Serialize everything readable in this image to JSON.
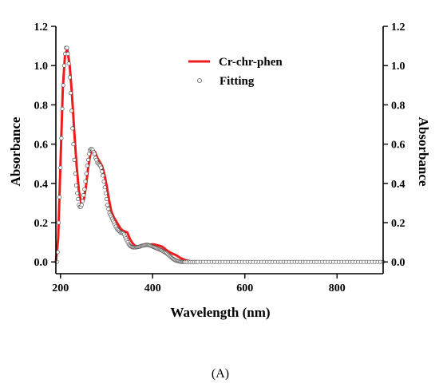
{
  "chart_data": {
    "type": "line",
    "xlabel": "Wavelength (nm)",
    "ylabel_left": "Absorbance",
    "ylabel_right": "Absorbance",
    "xlim": [
      190,
      900
    ],
    "ylim": [
      -0.06,
      1.2
    ],
    "xticks": [
      200,
      400,
      600,
      800
    ],
    "yticks": [
      0.0,
      0.2,
      0.4,
      0.6,
      0.8,
      1.0,
      1.2
    ],
    "ytick_labels": [
      "0.0",
      "0.2",
      "0.4",
      "0.6",
      "0.8",
      "1.0",
      "1.2"
    ],
    "legend_position": "top-center",
    "grid": false,
    "panel_label": "(A)",
    "colors": {
      "line": "#ee1c1c",
      "marker_stroke": "#555555",
      "axis": "#000000"
    },
    "series": [
      {
        "name": "Cr-chr-phen",
        "style": "line",
        "points": [
          [
            190,
            0.0
          ],
          [
            195,
            0.12
          ],
          [
            200,
            0.5
          ],
          [
            205,
            0.88
          ],
          [
            210,
            1.06
          ],
          [
            215,
            1.08
          ],
          [
            220,
            1.0
          ],
          [
            225,
            0.85
          ],
          [
            230,
            0.66
          ],
          [
            235,
            0.49
          ],
          [
            240,
            0.36
          ],
          [
            245,
            0.3
          ],
          [
            250,
            0.31
          ],
          [
            255,
            0.38
          ],
          [
            260,
            0.48
          ],
          [
            265,
            0.55
          ],
          [
            270,
            0.57
          ],
          [
            275,
            0.56
          ],
          [
            280,
            0.53
          ],
          [
            285,
            0.51
          ],
          [
            290,
            0.49
          ],
          [
            295,
            0.45
          ],
          [
            300,
            0.39
          ],
          [
            305,
            0.32
          ],
          [
            310,
            0.26
          ],
          [
            315,
            0.23
          ],
          [
            320,
            0.21
          ],
          [
            325,
            0.19
          ],
          [
            330,
            0.17
          ],
          [
            335,
            0.16
          ],
          [
            340,
            0.155
          ],
          [
            345,
            0.15
          ],
          [
            350,
            0.12
          ],
          [
            355,
            0.1
          ],
          [
            360,
            0.085
          ],
          [
            365,
            0.08
          ],
          [
            370,
            0.078
          ],
          [
            375,
            0.078
          ],
          [
            380,
            0.08
          ],
          [
            385,
            0.082
          ],
          [
            390,
            0.085
          ],
          [
            395,
            0.088
          ],
          [
            400,
            0.09
          ],
          [
            405,
            0.088
          ],
          [
            410,
            0.085
          ],
          [
            415,
            0.082
          ],
          [
            420,
            0.078
          ],
          [
            425,
            0.07
          ],
          [
            430,
            0.06
          ],
          [
            435,
            0.052
          ],
          [
            440,
            0.045
          ],
          [
            445,
            0.04
          ],
          [
            450,
            0.035
          ],
          [
            455,
            0.028
          ],
          [
            460,
            0.02
          ],
          [
            465,
            0.015
          ],
          [
            470,
            0.01
          ],
          [
            475,
            0.007
          ],
          [
            480,
            0.004
          ],
          [
            485,
            0.002
          ],
          [
            490,
            0.001
          ],
          [
            500,
            0.0
          ],
          [
            550,
            0.0
          ],
          [
            600,
            0.0
          ],
          [
            650,
            0.0
          ],
          [
            700,
            0.0
          ],
          [
            750,
            0.0
          ],
          [
            800,
            0.0
          ],
          [
            850,
            0.0
          ],
          [
            900,
            0.0
          ]
        ]
      },
      {
        "name": "Fitting",
        "style": "markers",
        "points": [
          [
            192,
            0.0
          ],
          [
            194,
            0.05
          ],
          [
            196,
            0.2
          ],
          [
            198,
            0.33
          ],
          [
            200,
            0.48
          ],
          [
            202,
            0.63
          ],
          [
            204,
            0.78
          ],
          [
            206,
            0.9
          ],
          [
            208,
            1.0
          ],
          [
            210,
            1.06
          ],
          [
            212,
            1.09
          ],
          [
            214,
            1.09
          ],
          [
            216,
            1.06
          ],
          [
            218,
            1.01
          ],
          [
            220,
            0.94
          ],
          [
            222,
            0.86
          ],
          [
            224,
            0.77
          ],
          [
            226,
            0.68
          ],
          [
            228,
            0.6
          ],
          [
            230,
            0.52
          ],
          [
            232,
            0.45
          ],
          [
            234,
            0.39
          ],
          [
            236,
            0.35
          ],
          [
            238,
            0.32
          ],
          [
            240,
            0.29
          ],
          [
            242,
            0.28
          ],
          [
            244,
            0.28
          ],
          [
            246,
            0.29
          ],
          [
            248,
            0.31
          ],
          [
            250,
            0.34
          ],
          [
            252,
            0.37
          ],
          [
            254,
            0.41
          ],
          [
            256,
            0.45
          ],
          [
            258,
            0.49
          ],
          [
            260,
            0.52
          ],
          [
            262,
            0.55
          ],
          [
            264,
            0.57
          ],
          [
            266,
            0.575
          ],
          [
            268,
            0.575
          ],
          [
            270,
            0.57
          ],
          [
            272,
            0.56
          ],
          [
            274,
            0.55
          ],
          [
            276,
            0.53
          ],
          [
            278,
            0.52
          ],
          [
            280,
            0.505
          ],
          [
            282,
            0.5
          ],
          [
            284,
            0.495
          ],
          [
            286,
            0.49
          ],
          [
            288,
            0.48
          ],
          [
            290,
            0.46
          ],
          [
            292,
            0.44
          ],
          [
            294,
            0.41
          ],
          [
            296,
            0.38
          ],
          [
            298,
            0.35
          ],
          [
            300,
            0.32
          ],
          [
            302,
            0.29
          ],
          [
            304,
            0.27
          ],
          [
            306,
            0.25
          ],
          [
            308,
            0.24
          ],
          [
            310,
            0.23
          ],
          [
            312,
            0.22
          ],
          [
            314,
            0.21
          ],
          [
            316,
            0.2
          ],
          [
            318,
            0.19
          ],
          [
            320,
            0.18
          ],
          [
            322,
            0.17
          ],
          [
            324,
            0.165
          ],
          [
            326,
            0.16
          ],
          [
            328,
            0.155
          ],
          [
            330,
            0.15
          ],
          [
            332,
            0.15
          ],
          [
            334,
            0.148
          ],
          [
            336,
            0.146
          ],
          [
            338,
            0.14
          ],
          [
            340,
            0.13
          ],
          [
            342,
            0.12
          ],
          [
            344,
            0.11
          ],
          [
            346,
            0.1
          ],
          [
            348,
            0.09
          ],
          [
            350,
            0.085
          ],
          [
            352,
            0.08
          ],
          [
            354,
            0.077
          ],
          [
            356,
            0.075
          ],
          [
            358,
            0.074
          ],
          [
            360,
            0.074
          ],
          [
            362,
            0.074
          ],
          [
            364,
            0.075
          ],
          [
            366,
            0.075
          ],
          [
            368,
            0.076
          ],
          [
            370,
            0.077
          ],
          [
            372,
            0.078
          ],
          [
            374,
            0.08
          ],
          [
            376,
            0.082
          ],
          [
            378,
            0.083
          ],
          [
            380,
            0.084
          ],
          [
            382,
            0.085
          ],
          [
            384,
            0.086
          ],
          [
            386,
            0.087
          ],
          [
            388,
            0.087
          ],
          [
            390,
            0.086
          ],
          [
            392,
            0.085
          ],
          [
            394,
            0.084
          ],
          [
            396,
            0.082
          ],
          [
            398,
            0.08
          ],
          [
            400,
            0.078
          ],
          [
            402,
            0.076
          ],
          [
            404,
            0.074
          ],
          [
            406,
            0.072
          ],
          [
            408,
            0.07
          ],
          [
            410,
            0.068
          ],
          [
            412,
            0.066
          ],
          [
            414,
            0.064
          ],
          [
            416,
            0.062
          ],
          [
            418,
            0.06
          ],
          [
            420,
            0.058
          ],
          [
            422,
            0.055
          ],
          [
            424,
            0.052
          ],
          [
            426,
            0.05
          ],
          [
            428,
            0.047
          ],
          [
            430,
            0.044
          ],
          [
            432,
            0.04
          ],
          [
            434,
            0.036
          ],
          [
            436,
            0.032
          ],
          [
            438,
            0.028
          ],
          [
            440,
            0.024
          ],
          [
            442,
            0.02
          ],
          [
            444,
            0.016
          ],
          [
            446,
            0.013
          ],
          [
            448,
            0.01
          ],
          [
            450,
            0.008
          ],
          [
            452,
            0.006
          ],
          [
            454,
            0.004
          ],
          [
            456,
            0.003
          ],
          [
            458,
            0.002
          ],
          [
            460,
            0.001
          ],
          [
            462,
            0.0
          ],
          [
            464,
            0.0
          ],
          [
            466,
            0.0
          ],
          [
            468,
            0.0
          ],
          [
            470,
            0.0
          ],
          [
            474,
            0.0
          ],
          [
            478,
            0.0
          ],
          [
            482,
            0.0
          ],
          [
            486,
            0.0
          ],
          [
            490,
            0.0
          ],
          [
            494,
            0.0
          ],
          [
            498,
            0.0
          ],
          [
            504,
            0.0
          ],
          [
            510,
            0.0
          ],
          [
            516,
            0.0
          ],
          [
            522,
            0.0
          ],
          [
            528,
            0.0
          ],
          [
            534,
            0.0
          ],
          [
            540,
            0.0
          ],
          [
            546,
            0.0
          ],
          [
            552,
            0.0
          ],
          [
            558,
            0.0
          ],
          [
            564,
            0.0
          ],
          [
            570,
            0.0
          ],
          [
            576,
            0.0
          ],
          [
            582,
            0.0
          ],
          [
            588,
            0.0
          ],
          [
            594,
            0.0
          ],
          [
            600,
            0.0
          ],
          [
            606,
            0.0
          ],
          [
            612,
            0.0
          ],
          [
            618,
            0.0
          ],
          [
            624,
            0.0
          ],
          [
            630,
            0.0
          ],
          [
            636,
            0.0
          ],
          [
            642,
            0.0
          ],
          [
            648,
            0.0
          ],
          [
            654,
            0.0
          ],
          [
            660,
            0.0
          ],
          [
            666,
            0.0
          ],
          [
            672,
            0.0
          ],
          [
            678,
            0.0
          ],
          [
            684,
            0.0
          ],
          [
            690,
            0.0
          ],
          [
            696,
            0.0
          ],
          [
            702,
            0.0
          ],
          [
            708,
            0.0
          ],
          [
            714,
            0.0
          ],
          [
            720,
            0.0
          ],
          [
            726,
            0.0
          ],
          [
            732,
            0.0
          ],
          [
            738,
            0.0
          ],
          [
            744,
            0.0
          ],
          [
            750,
            0.0
          ],
          [
            756,
            0.0
          ],
          [
            762,
            0.0
          ],
          [
            768,
            0.0
          ],
          [
            774,
            0.0
          ],
          [
            780,
            0.0
          ],
          [
            786,
            0.0
          ],
          [
            792,
            0.0
          ],
          [
            798,
            0.0
          ],
          [
            804,
            0.0
          ],
          [
            810,
            0.0
          ],
          [
            816,
            0.0
          ],
          [
            822,
            0.0
          ],
          [
            828,
            0.0
          ],
          [
            834,
            0.0
          ],
          [
            840,
            0.0
          ],
          [
            846,
            0.0
          ],
          [
            852,
            0.0
          ],
          [
            858,
            0.0
          ],
          [
            864,
            0.0
          ],
          [
            870,
            0.0
          ],
          [
            876,
            0.0
          ],
          [
            882,
            0.0
          ],
          [
            888,
            0.0
          ],
          [
            894,
            0.0
          ],
          [
            900,
            0.0
          ]
        ]
      }
    ]
  }
}
